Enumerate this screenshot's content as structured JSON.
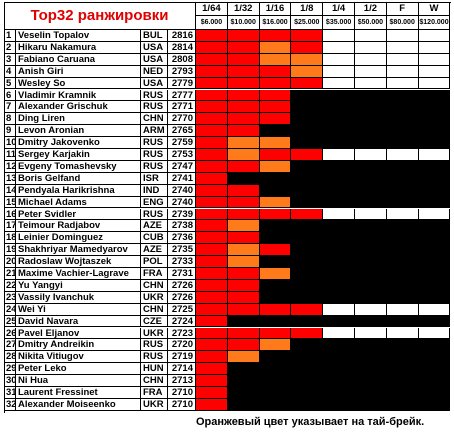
{
  "header": {
    "title": "Top32 ранжировки",
    "rounds": [
      "1/64",
      "1/32",
      "1/16",
      "1/8",
      "1/4",
      "1/2",
      "F",
      "W"
    ],
    "prizes": [
      "$6.000",
      "$10.000",
      "$16.000",
      "$25.000",
      "$35.000",
      "$50.000",
      "$80.000",
      "$120.000"
    ]
  },
  "colors": {
    "win": "#ff0000",
    "tiebreak": "#ff7a1a",
    "out": "#000000",
    "pending": "#ffffff"
  },
  "rows": [
    {
      "rank": 1,
      "name": "Veselin Topalov",
      "country": "BUL",
      "rating": 2816,
      "results": [
        "win",
        "win",
        "win",
        "win",
        "pending",
        "pending",
        "pending",
        "pending"
      ]
    },
    {
      "rank": 2,
      "name": "Hikaru Nakamura",
      "country": "USA",
      "rating": 2814,
      "results": [
        "win",
        "win",
        "tiebreak",
        "win",
        "pending",
        "pending",
        "pending",
        "pending"
      ]
    },
    {
      "rank": 3,
      "name": "Fabiano Caruana",
      "country": "USA",
      "rating": 2808,
      "results": [
        "win",
        "win",
        "tiebreak",
        "tiebreak",
        "pending",
        "pending",
        "pending",
        "pending"
      ]
    },
    {
      "rank": 4,
      "name": "Anish Giri",
      "country": "NED",
      "rating": 2793,
      "results": [
        "win",
        "win",
        "win",
        "tiebreak",
        "pending",
        "pending",
        "pending",
        "pending"
      ]
    },
    {
      "rank": 5,
      "name": "Wesley So",
      "country": "USA",
      "rating": 2779,
      "results": [
        "win",
        "win",
        "win",
        "win",
        "pending",
        "pending",
        "pending",
        "pending"
      ]
    },
    {
      "rank": 6,
      "name": "Vladimir Kramnik",
      "country": "RUS",
      "rating": 2777,
      "results": [
        "win",
        "win",
        "win",
        "out",
        "out",
        "out",
        "out",
        "out"
      ]
    },
    {
      "rank": 7,
      "name": "Alexander Grischuk",
      "country": "RUS",
      "rating": 2771,
      "results": [
        "win",
        "win",
        "win",
        "out",
        "out",
        "out",
        "out",
        "out"
      ]
    },
    {
      "rank": 8,
      "name": "Ding Liren",
      "country": "CHN",
      "rating": 2770,
      "results": [
        "win",
        "win",
        "win",
        "out",
        "out",
        "out",
        "out",
        "out"
      ]
    },
    {
      "rank": 9,
      "name": "Levon Aronian",
      "country": "ARM",
      "rating": 2765,
      "results": [
        "win",
        "win",
        "out",
        "out",
        "out",
        "out",
        "out",
        "out"
      ]
    },
    {
      "rank": 10,
      "name": "Dmitry Jakovenko",
      "country": "RUS",
      "rating": 2759,
      "results": [
        "win",
        "tiebreak",
        "tiebreak",
        "out",
        "out",
        "out",
        "out",
        "out"
      ]
    },
    {
      "rank": 11,
      "name": "Sergey Karjakin",
      "country": "RUS",
      "rating": 2753,
      "results": [
        "win",
        "tiebreak",
        "win",
        "win",
        "pending",
        "pending",
        "pending",
        "pending"
      ]
    },
    {
      "rank": 12,
      "name": "Evgeny Tomashevsky",
      "country": "RUS",
      "rating": 2747,
      "results": [
        "win",
        "win",
        "tiebreak",
        "out",
        "out",
        "out",
        "out",
        "out"
      ]
    },
    {
      "rank": 13,
      "name": "Boris Gelfand",
      "country": "ISR",
      "rating": 2741,
      "results": [
        "win",
        "out",
        "out",
        "out",
        "out",
        "out",
        "out",
        "out"
      ]
    },
    {
      "rank": 14,
      "name": "Pendyala Harikrishna",
      "country": "IND",
      "rating": 2740,
      "results": [
        "win",
        "win",
        "out",
        "out",
        "out",
        "out",
        "out",
        "out"
      ]
    },
    {
      "rank": 15,
      "name": "Michael Adams",
      "country": "ENG",
      "rating": 2740,
      "results": [
        "win",
        "win",
        "tiebreak",
        "out",
        "out",
        "out",
        "out",
        "out"
      ]
    },
    {
      "rank": 16,
      "name": "Peter Svidler",
      "country": "RUS",
      "rating": 2739,
      "results": [
        "win",
        "win",
        "win",
        "win",
        "pending",
        "pending",
        "pending",
        "pending"
      ]
    },
    {
      "rank": 17,
      "name": "Teimour Radjabov",
      "country": "AZE",
      "rating": 2738,
      "results": [
        "win",
        "tiebreak",
        "out",
        "out",
        "out",
        "out",
        "out",
        "out"
      ]
    },
    {
      "rank": 18,
      "name": "Leinier Dominguez",
      "country": "CUB",
      "rating": 2736,
      "results": [
        "win",
        "win",
        "out",
        "out",
        "out",
        "out",
        "out",
        "out"
      ]
    },
    {
      "rank": 19,
      "name": "Shakhriyar Mamedyarov",
      "country": "AZE",
      "rating": 2735,
      "results": [
        "win",
        "tiebreak",
        "win",
        "out",
        "out",
        "out",
        "out",
        "out"
      ]
    },
    {
      "rank": 20,
      "name": "Radoslaw Wojtaszek",
      "country": "POL",
      "rating": 2733,
      "results": [
        "win",
        "tiebreak",
        "out",
        "out",
        "out",
        "out",
        "out",
        "out"
      ]
    },
    {
      "rank": 21,
      "name": "Maxime Vachier-Lagrave",
      "country": "FRA",
      "rating": 2731,
      "results": [
        "win",
        "win",
        "tiebreak",
        "out",
        "out",
        "out",
        "out",
        "out"
      ]
    },
    {
      "rank": 22,
      "name": "Yu Yangyi",
      "country": "CHN",
      "rating": 2726,
      "results": [
        "win",
        "win",
        "out",
        "out",
        "out",
        "out",
        "out",
        "out"
      ]
    },
    {
      "rank": 23,
      "name": "Vassily Ivanchuk",
      "country": "UKR",
      "rating": 2726,
      "results": [
        "win",
        "win",
        "out",
        "out",
        "out",
        "out",
        "out",
        "out"
      ]
    },
    {
      "rank": 24,
      "name": "Wei Yi",
      "country": "CHN",
      "rating": 2725,
      "results": [
        "win",
        "win",
        "win",
        "win",
        "pending",
        "pending",
        "pending",
        "pending"
      ]
    },
    {
      "rank": 25,
      "name": "David Navara",
      "country": "CZE",
      "rating": 2724,
      "results": [
        "win",
        "out",
        "out",
        "out",
        "out",
        "out",
        "out",
        "out"
      ]
    },
    {
      "rank": 26,
      "name": "Pavel Eljanov",
      "country": "UKR",
      "rating": 2723,
      "results": [
        "win",
        "win",
        "win",
        "win",
        "pending",
        "pending",
        "pending",
        "pending"
      ]
    },
    {
      "rank": 27,
      "name": "Dmitry Andreikin",
      "country": "RUS",
      "rating": 2720,
      "results": [
        "win",
        "win",
        "tiebreak",
        "out",
        "out",
        "out",
        "out",
        "out"
      ]
    },
    {
      "rank": 28,
      "name": "Nikita Vitiugov",
      "country": "RUS",
      "rating": 2719,
      "results": [
        "win",
        "tiebreak",
        "out",
        "out",
        "out",
        "out",
        "out",
        "out"
      ]
    },
    {
      "rank": 29,
      "name": "Peter Leko",
      "country": "HUN",
      "rating": 2714,
      "results": [
        "win",
        "out",
        "out",
        "out",
        "out",
        "out",
        "out",
        "out"
      ]
    },
    {
      "rank": 30,
      "name": "Ni Hua",
      "country": "CHN",
      "rating": 2713,
      "results": [
        "win",
        "out",
        "out",
        "out",
        "out",
        "out",
        "out",
        "out"
      ]
    },
    {
      "rank": 31,
      "name": "Laurent Fressinet",
      "country": "FRA",
      "rating": 2710,
      "results": [
        "win",
        "out",
        "out",
        "out",
        "out",
        "out",
        "out",
        "out"
      ]
    },
    {
      "rank": 32,
      "name": "Alexander Moiseenko",
      "country": "UKR",
      "rating": 2710,
      "results": [
        "win",
        "out",
        "out",
        "out",
        "out",
        "out",
        "out",
        "out"
      ]
    }
  ],
  "note": "Оранжевый цвет указывает на тай-брейк."
}
